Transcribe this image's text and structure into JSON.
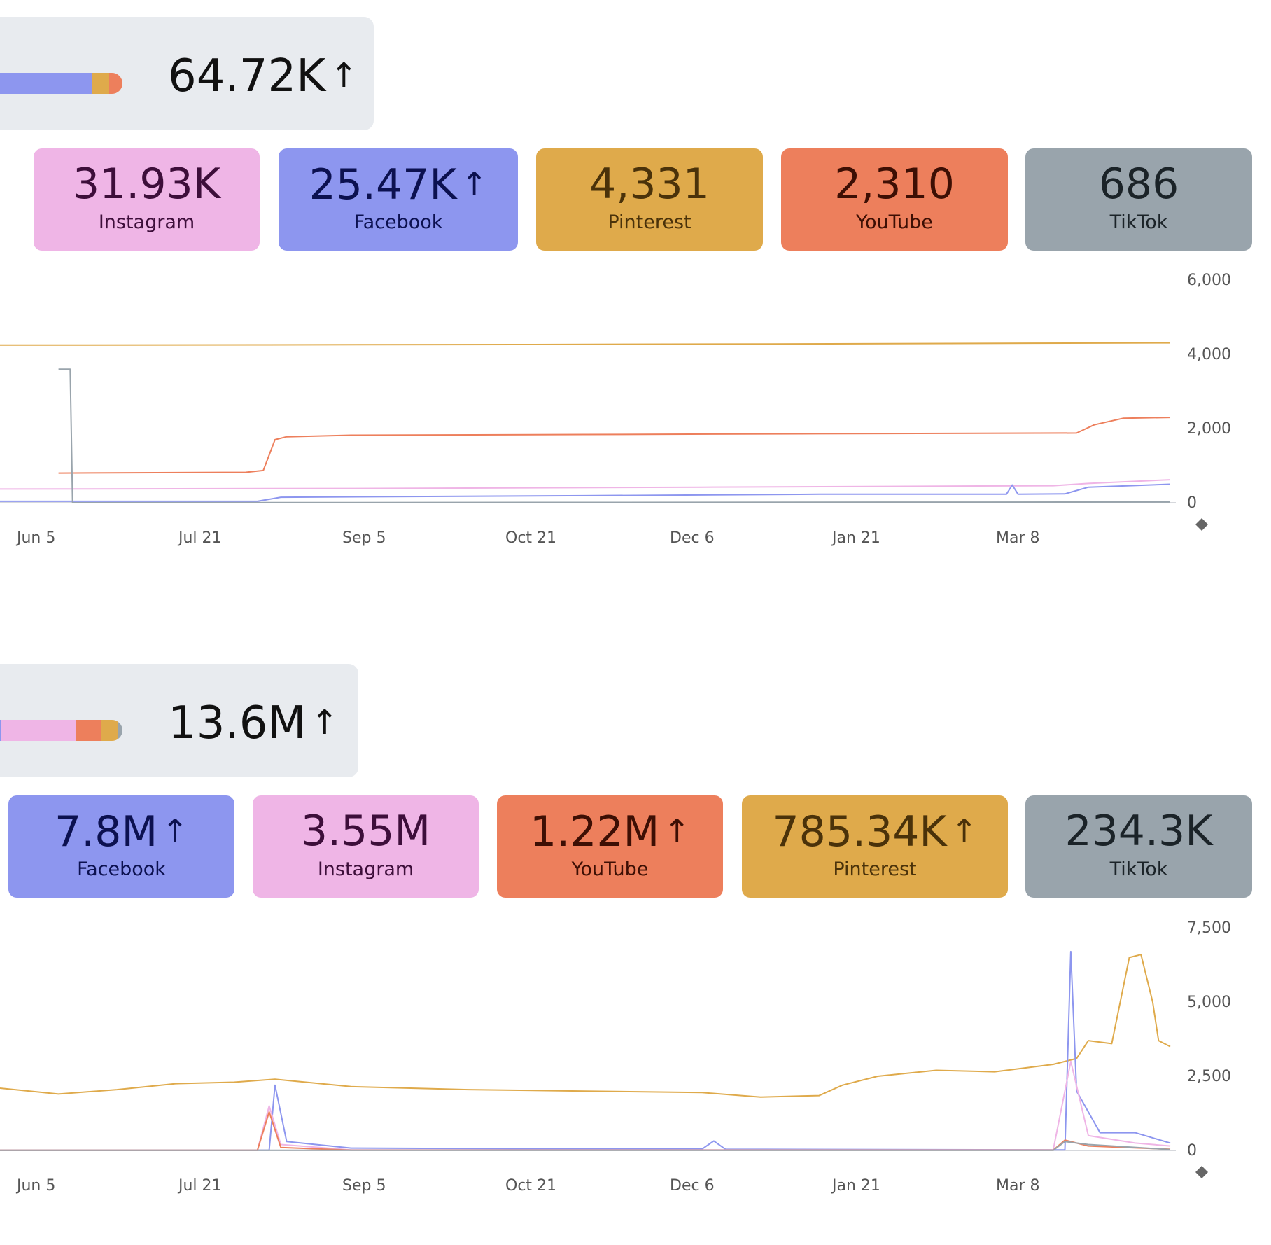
{
  "panel_1": {
    "total": "64.72K",
    "total_trend": "↑",
    "platforms": [
      {
        "value": "31.93K",
        "trend": "",
        "label": "Instagram",
        "color": "#efb5e6",
        "text_color": "#3d0e3a"
      },
      {
        "value": "25.47K",
        "trend": "↑",
        "label": "Facebook",
        "color": "#8d96ef",
        "text_color": "#0c1150"
      },
      {
        "value": "4,331",
        "trend": "",
        "label": "Pinterest",
        "color": "#dfaa4b",
        "text_color": "#4a320a"
      },
      {
        "value": "2,310",
        "trend": "",
        "label": "YouTube",
        "color": "#ed7f5c",
        "text_color": "#3d0f04"
      },
      {
        "value": "686",
        "trend": "",
        "label": "TikTok",
        "color": "#99a4ac",
        "text_color": "#1b2328"
      }
    ],
    "mini_bar": [
      {
        "platform": "Facebook",
        "fraction": 0.75,
        "color": "#8d96ef"
      },
      {
        "platform": "Pinterest",
        "fraction": 0.14,
        "color": "#dfaa4b"
      },
      {
        "platform": "YouTube",
        "fraction": 0.11,
        "color": "#ed7f5c"
      }
    ],
    "chart_data": {
      "type": "line",
      "x_ticks": [
        "Jun 5",
        "Jul 21",
        "Sep 5",
        "Oct 21",
        "Dec 6",
        "Jan 21",
        "Mar 8"
      ],
      "y_ticks": [
        "6,000",
        "4,000",
        "2,000",
        "0"
      ],
      "ylim": [
        0,
        6000
      ],
      "series": [
        {
          "name": "Pinterest",
          "color": "#dfaa4b",
          "points": [
            [
              0,
              4250
            ],
            [
              0.22,
              4255
            ],
            [
              0.44,
              4265
            ],
            [
              0.66,
              4280
            ],
            [
              0.88,
              4300
            ],
            [
              1,
              4310
            ]
          ]
        },
        {
          "name": "YouTube",
          "color": "#ed7f5c",
          "points": [
            [
              0.05,
              800
            ],
            [
              0.21,
              820
            ],
            [
              0.225,
              870
            ],
            [
              0.235,
              1700
            ],
            [
              0.245,
              1780
            ],
            [
              0.3,
              1820
            ],
            [
              0.5,
              1840
            ],
            [
              0.7,
              1860
            ],
            [
              0.92,
              1880
            ],
            [
              0.935,
              2100
            ],
            [
              0.96,
              2280
            ],
            [
              1,
              2300
            ]
          ]
        },
        {
          "name": "Instagram",
          "color": "#efb5e6",
          "points": [
            [
              0,
              370
            ],
            [
              0.3,
              385
            ],
            [
              0.6,
              420
            ],
            [
              0.9,
              460
            ],
            [
              0.93,
              520
            ],
            [
              1,
              620
            ]
          ]
        },
        {
          "name": "Facebook",
          "color": "#8d96ef",
          "points": [
            [
              0,
              40
            ],
            [
              0.22,
              40
            ],
            [
              0.24,
              150
            ],
            [
              0.5,
              190
            ],
            [
              0.7,
              230
            ],
            [
              0.86,
              230
            ],
            [
              0.865,
              480
            ],
            [
              0.87,
              230
            ],
            [
              0.91,
              240
            ],
            [
              0.93,
              420
            ],
            [
              1,
              500
            ]
          ]
        },
        {
          "name": "TikTok",
          "color": "#99a4ac",
          "points": [
            [
              0.05,
              3600
            ],
            [
              0.06,
              3600
            ],
            [
              0.062,
              0
            ],
            [
              1,
              20
            ]
          ]
        }
      ]
    }
  },
  "panel_2": {
    "total": "13.6M",
    "total_trend": "↑",
    "platforms": [
      {
        "value": "7.8M",
        "trend": "↑",
        "label": "Facebook",
        "color": "#8d96ef",
        "text_color": "#0c1150"
      },
      {
        "value": "3.55M",
        "trend": "",
        "label": "Instagram",
        "color": "#efb5e6",
        "text_color": "#3d0e3a"
      },
      {
        "value": "1.22M",
        "trend": "↑",
        "label": "YouTube",
        "color": "#ed7f5c",
        "text_color": "#3d0f04"
      },
      {
        "value": "785.34K",
        "trend": "↑",
        "label": "Pinterest",
        "color": "#dfaa4b",
        "text_color": "#4a320a"
      },
      {
        "value": "234.3K",
        "trend": "",
        "label": "TikTok",
        "color": "#99a4ac",
        "text_color": "#1b2328"
      }
    ],
    "mini_bar": [
      {
        "platform": "Facebook",
        "fraction": 0.01,
        "color": "#8d96ef"
      },
      {
        "platform": "Instagram",
        "fraction": 0.61,
        "color": "#efb5e6"
      },
      {
        "platform": "YouTube",
        "fraction": 0.21,
        "color": "#ed7f5c"
      },
      {
        "platform": "Pinterest",
        "fraction": 0.13,
        "color": "#dfaa4b"
      },
      {
        "platform": "TikTok",
        "fraction": 0.04,
        "color": "#99a4ac"
      }
    ],
    "chart_data": {
      "type": "line",
      "x_ticks": [
        "Jun 5",
        "Jul 21",
        "Sep 5",
        "Oct 21",
        "Dec 6",
        "Jan 21",
        "Mar 8"
      ],
      "y_ticks": [
        "7,500",
        "5,000",
        "2,500",
        "0"
      ],
      "ylim": [
        0,
        7500
      ],
      "series": [
        {
          "name": "Pinterest",
          "color": "#dfaa4b",
          "points": [
            [
              0,
              2100
            ],
            [
              0.05,
              1900
            ],
            [
              0.1,
              2050
            ],
            [
              0.15,
              2250
            ],
            [
              0.2,
              2300
            ],
            [
              0.235,
              2400
            ],
            [
              0.3,
              2150
            ],
            [
              0.4,
              2050
            ],
            [
              0.5,
              2000
            ],
            [
              0.6,
              1950
            ],
            [
              0.65,
              1800
            ],
            [
              0.7,
              1850
            ],
            [
              0.72,
              2200
            ],
            [
              0.75,
              2500
            ],
            [
              0.8,
              2700
            ],
            [
              0.85,
              2650
            ],
            [
              0.9,
              2900
            ],
            [
              0.92,
              3100
            ],
            [
              0.93,
              3700
            ],
            [
              0.95,
              3600
            ],
            [
              0.965,
              6500
            ],
            [
              0.975,
              6600
            ],
            [
              0.985,
              5000
            ],
            [
              0.99,
              3700
            ],
            [
              1,
              3500
            ]
          ]
        },
        {
          "name": "Facebook",
          "color": "#8d96ef",
          "points": [
            [
              0,
              10
            ],
            [
              0.23,
              10
            ],
            [
              0.235,
              2200
            ],
            [
              0.245,
              300
            ],
            [
              0.3,
              80
            ],
            [
              0.5,
              50
            ],
            [
              0.6,
              50
            ],
            [
              0.61,
              320
            ],
            [
              0.62,
              40
            ],
            [
              0.91,
              20
            ],
            [
              0.915,
              6700
            ],
            [
              0.92,
              2000
            ],
            [
              0.94,
              600
            ],
            [
              0.97,
              600
            ],
            [
              1,
              250
            ]
          ]
        },
        {
          "name": "Instagram",
          "color": "#efb5e6",
          "points": [
            [
              0,
              10
            ],
            [
              0.22,
              10
            ],
            [
              0.23,
              1500
            ],
            [
              0.24,
              200
            ],
            [
              0.3,
              20
            ],
            [
              0.9,
              20
            ],
            [
              0.915,
              3000
            ],
            [
              0.93,
              500
            ],
            [
              0.97,
              250
            ],
            [
              1,
              150
            ]
          ]
        },
        {
          "name": "YouTube",
          "color": "#ed7f5c",
          "points": [
            [
              0,
              5
            ],
            [
              0.22,
              5
            ],
            [
              0.23,
              1300
            ],
            [
              0.24,
              100
            ],
            [
              0.3,
              10
            ],
            [
              0.9,
              10
            ],
            [
              0.91,
              350
            ],
            [
              0.93,
              150
            ],
            [
              1,
              40
            ]
          ]
        },
        {
          "name": "TikTok",
          "color": "#99a4ac",
          "points": [
            [
              0,
              5
            ],
            [
              0.9,
              5
            ],
            [
              0.91,
              300
            ],
            [
              0.93,
              200
            ],
            [
              1,
              30
            ]
          ]
        }
      ]
    }
  }
}
